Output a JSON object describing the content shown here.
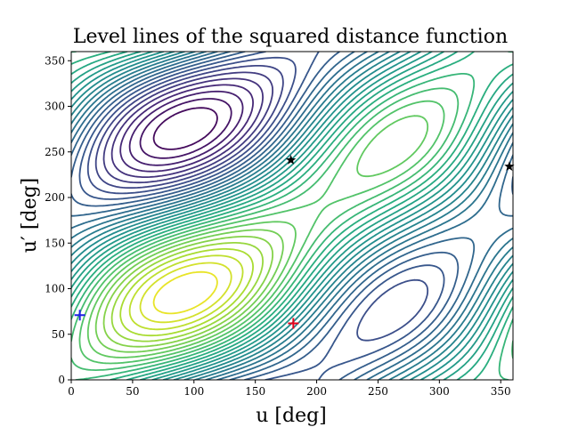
{
  "chart_data": {
    "type": "contour",
    "title": "Level lines of the squared distance function",
    "xlabel": "u [deg]",
    "ylabel": "u′ [deg]",
    "xlim": [
      0,
      360
    ],
    "ylim": [
      0,
      360
    ],
    "xticks": [
      "0",
      "50",
      "100",
      "150",
      "200",
      "250",
      "300",
      "350"
    ],
    "yticks": [
      "0",
      "50",
      "100",
      "150",
      "200",
      "250",
      "300",
      "350"
    ],
    "grid": false,
    "colormap": "viridis",
    "levels": 32,
    "markers": [
      {
        "name": "min-marker",
        "symbol": "plus",
        "color": "#e6001a",
        "x": 181,
        "y": 62
      },
      {
        "name": "saddle-marker",
        "symbol": "star",
        "color": "#000000",
        "x": 179,
        "y": 241
      },
      {
        "name": "max-marker",
        "symbol": "star",
        "color": "#000000",
        "x": 357,
        "y": 234
      },
      {
        "name": "start-marker",
        "symbol": "plus",
        "color": "#1f1fe6",
        "x": 7,
        "y": 71
      }
    ]
  }
}
